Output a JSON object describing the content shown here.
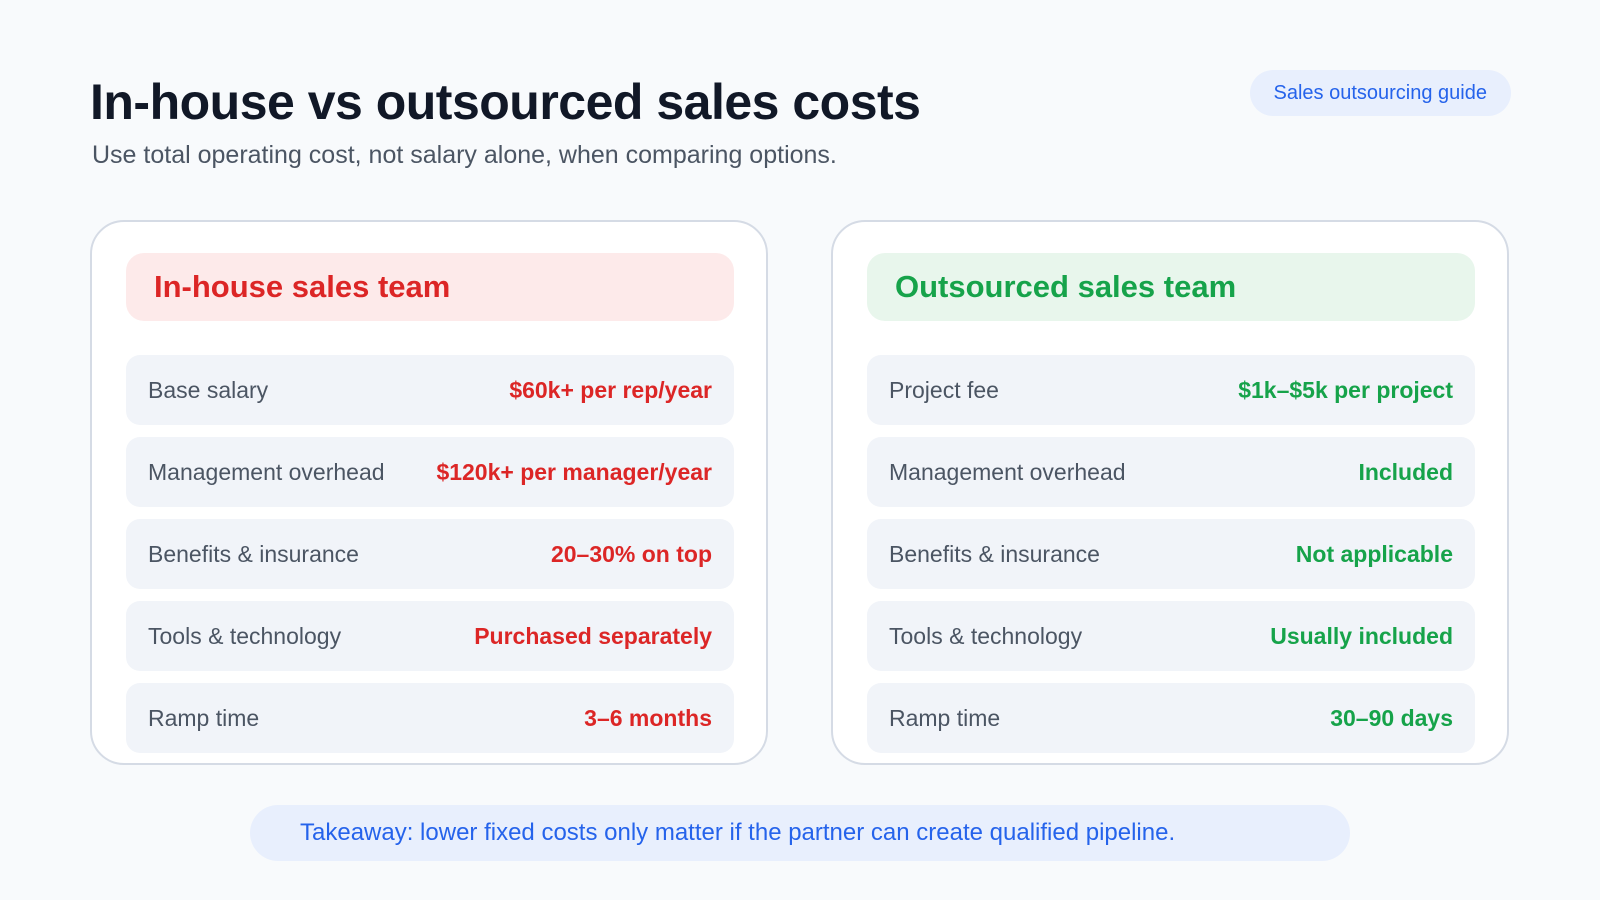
{
  "header": {
    "title": "In-house vs outsourced sales costs",
    "subtitle": "Use total operating cost, not salary alone, when comparing options.",
    "guide_label": "Sales outsourcing guide"
  },
  "inhouse": {
    "title": "In-house sales team",
    "rows": [
      {
        "label": "Base salary",
        "value": "$60k+ per rep/year"
      },
      {
        "label": "Management overhead",
        "value": "$120k+ per manager/year"
      },
      {
        "label": "Benefits & insurance",
        "value": "20–30% on top"
      },
      {
        "label": "Tools & technology",
        "value": "Purchased separately"
      },
      {
        "label": "Ramp time",
        "value": "3–6 months"
      }
    ]
  },
  "outsourced": {
    "title": "Outsourced sales team",
    "rows": [
      {
        "label": "Project fee",
        "value": "$1k–$5k per project"
      },
      {
        "label": "Management overhead",
        "value": "Included"
      },
      {
        "label": "Benefits & insurance",
        "value": "Not applicable"
      },
      {
        "label": "Tools & technology",
        "value": "Usually included"
      },
      {
        "label": "Ramp time",
        "value": "30–90 days"
      }
    ]
  },
  "takeaway": "Takeaway: lower fixed costs only matter if the partner can create qualified pipeline.",
  "colors": {
    "inhouse_accent": "#dc2626",
    "outsourced_accent": "#16a34a",
    "link_accent": "#2563eb"
  }
}
